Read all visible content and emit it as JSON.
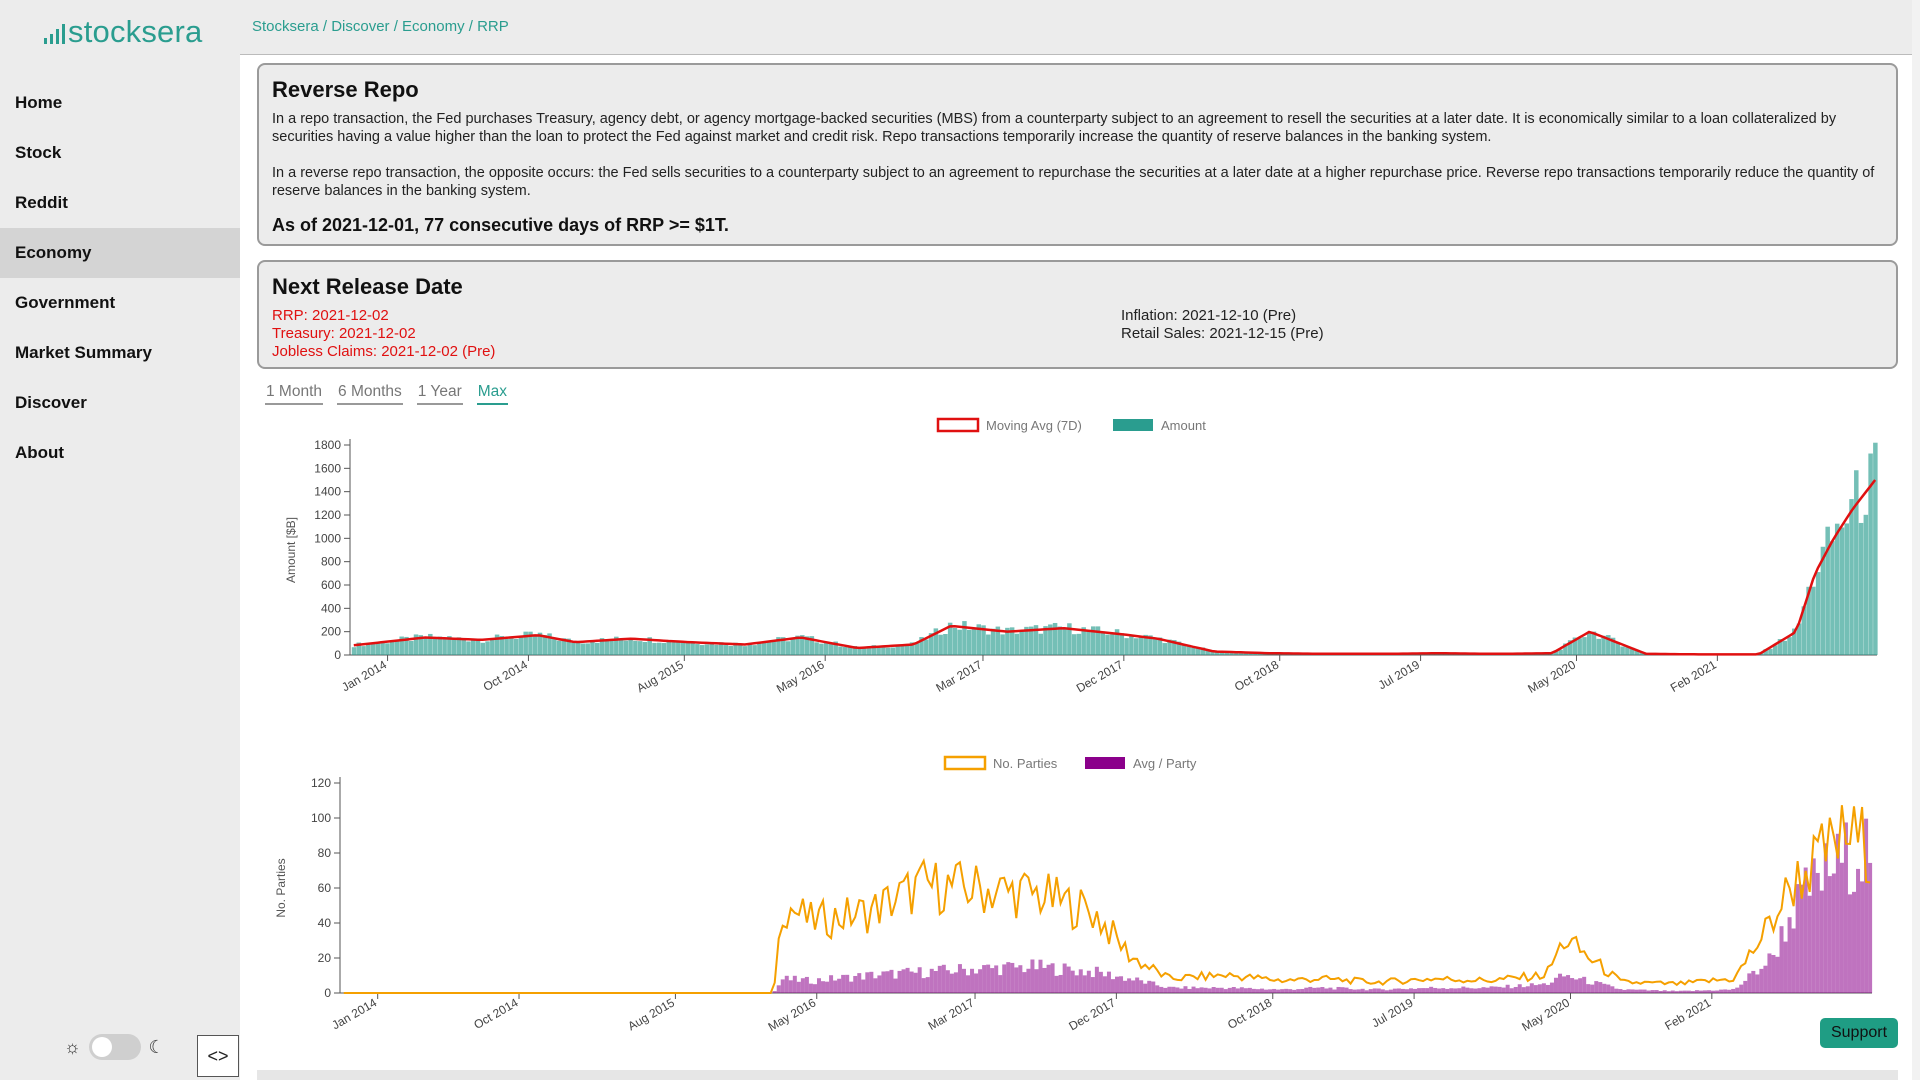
{
  "brand": {
    "name": "stocksera",
    "color": "#2a9d8f"
  },
  "breadcrumb": "Stocksera / Discover / Economy / RRP",
  "nav": {
    "items": [
      {
        "label": "Home",
        "active": false
      },
      {
        "label": "Stock",
        "active": false
      },
      {
        "label": "Reddit",
        "active": false
      },
      {
        "label": "Economy",
        "active": true
      },
      {
        "label": "Government",
        "active": false
      },
      {
        "label": "Market Summary",
        "active": false
      },
      {
        "label": "Discover",
        "active": false
      },
      {
        "label": "About",
        "active": false
      }
    ]
  },
  "theme": {
    "light_icon": "sun-icon",
    "dark_icon": "moon-icon",
    "dark_mode": false
  },
  "code_button_label": "<>",
  "info": {
    "title": "Reverse Repo",
    "paragraph1": "In a repo transaction, the Fed purchases Treasury, agency debt, or agency mortgage-backed securities (MBS) from a counterparty subject to an agreement to resell the securities at a later date. It is economically similar to a loan collateralized by securities having a value higher than the loan to protect the Fed against market and credit risk. Repo transactions temporarily increase the quantity of reserve balances in the banking system.",
    "paragraph2": "In a reverse repo transaction, the opposite occurs: the Fed sells securities to a counterparty subject to an agreement to repurchase the securities at a later date at a higher repurchase price. Reverse repo transactions temporarily reduce the quantity of reserve balances in the banking system.",
    "stat": "As of 2021-12-01, 77 consecutive days of RRP >= $1T."
  },
  "release": {
    "title": "Next Release Date",
    "left": [
      "RRP: 2021-12-02",
      "Treasury: 2021-12-02",
      "Jobless Claims: 2021-12-02 (Pre)"
    ],
    "right": [
      "Inflation: 2021-12-10 (Pre)",
      "Retail Sales: 2021-12-15 (Pre)"
    ],
    "left_color": "#e01010"
  },
  "range_tabs": [
    {
      "label": "1 Month",
      "active": false
    },
    {
      "label": "6 Months",
      "active": false
    },
    {
      "label": "1 Year",
      "active": false
    },
    {
      "label": "Max",
      "active": true
    }
  ],
  "support_label": "Support",
  "chart_data": [
    {
      "type": "area",
      "ylabel": "Amount [$B]",
      "ylim": [
        0,
        1800
      ],
      "yticks": [
        0,
        200,
        400,
        600,
        800,
        1000,
        1200,
        1400,
        1600,
        1800
      ],
      "xticks": [
        "Jan 2014",
        "Oct 2014",
        "Aug 2015",
        "May 2016",
        "Mar 2017",
        "Dec 2017",
        "Oct 2018",
        "Jul 2019",
        "May 2020",
        "Feb 2021"
      ],
      "legend": "top-center",
      "series": [
        {
          "name": "Moving Avg (7D)",
          "type": "line",
          "color": "#e01010"
        },
        {
          "name": "Amount",
          "type": "bar",
          "color": "#2a9d8f"
        }
      ],
      "x": [
        2013.8,
        2014.2,
        2014.5,
        2014.8,
        2015.0,
        2015.3,
        2015.6,
        2015.9,
        2016.2,
        2016.5,
        2016.8,
        2017.0,
        2017.3,
        2017.6,
        2017.9,
        2018.1,
        2018.4,
        2018.7,
        2019.0,
        2019.3,
        2019.6,
        2019.9,
        2020.2,
        2020.4,
        2020.7,
        2021.0,
        2021.3,
        2021.5,
        2021.6,
        2021.7,
        2021.8,
        2021.92
      ],
      "values": [
        80,
        150,
        130,
        170,
        110,
        140,
        110,
        90,
        150,
        60,
        90,
        250,
        200,
        230,
        180,
        140,
        30,
        15,
        10,
        10,
        15,
        10,
        15,
        200,
        10,
        5,
        5,
        200,
        700,
        1000,
        1250,
        1500
      ]
    },
    {
      "type": "line",
      "ylabel": "No. Parties",
      "ylim": [
        0,
        120
      ],
      "yticks": [
        0,
        20,
        40,
        60,
        80,
        100,
        120
      ],
      "xticks": [
        "Jan 2014",
        "Oct 2014",
        "Aug 2015",
        "May 2016",
        "Mar 2017",
        "Dec 2017",
        "Oct 2018",
        "Jul 2019",
        "May 2020",
        "Feb 2021"
      ],
      "legend": "top-center",
      "series": [
        {
          "name": "No. Parties",
          "type": "line",
          "color": "#f5a000"
        },
        {
          "name": "Avg / Party",
          "type": "bar",
          "color": "#8b008b"
        }
      ],
      "x": [
        2013.8,
        2015.0,
        2016.1,
        2016.15,
        2016.3,
        2016.6,
        2016.9,
        2017.2,
        2017.5,
        2017.8,
        2018.0,
        2018.2,
        2018.5,
        2018.8,
        2019.0,
        2019.3,
        2019.6,
        2019.9,
        2020.2,
        2020.3,
        2020.6,
        2020.9,
        2021.2,
        2021.4,
        2021.5,
        2021.6,
        2021.7,
        2021.8,
        2021.92
      ],
      "parties": [
        0,
        0,
        0,
        50,
        40,
        45,
        60,
        58,
        55,
        45,
        20,
        8,
        10,
        7,
        8,
        6,
        8,
        7,
        10,
        30,
        6,
        5,
        8,
        40,
        60,
        70,
        80,
        88,
        82
      ],
      "avg_per_party": [
        0,
        0,
        0,
        8,
        7,
        10,
        12,
        14,
        15,
        12,
        8,
        3,
        3,
        2,
        3,
        2,
        3,
        3,
        5,
        10,
        2,
        1,
        2,
        20,
        45,
        60,
        70,
        78,
        85
      ]
    }
  ]
}
